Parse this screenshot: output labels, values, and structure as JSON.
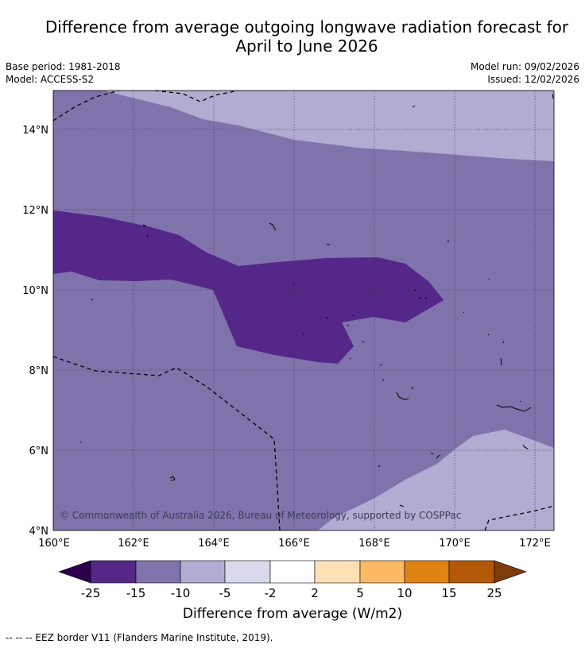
{
  "title_line1": "Difference from average outgoing longwave radiation forecast for",
  "title_line2": "April to June 2026",
  "base_period": "Base period: 1981-2018",
  "model": "Model: ACCESS-S2",
  "model_run": "Model run: 09/02/2026",
  "issued": "Issued: 12/02/2026",
  "copyright": "© Commonwealth of Australia 2026, Bureau of Meteorology, supported by COSPPac",
  "lat_labels": [
    "14°N",
    "12°N",
    "10°N",
    "8°N",
    "6°N",
    "4°N"
  ],
  "lon_labels": [
    "160°E",
    "162°E",
    "164°E",
    "166°E",
    "168°E",
    "170°E",
    "172°E"
  ],
  "colorbar": {
    "label": "Difference from average (W/m2)",
    "ticks": [
      "-25",
      "-15",
      "-10",
      "-5",
      "-2",
      "2",
      "5",
      "10",
      "15",
      "25"
    ],
    "colors": [
      "#2d004b",
      "#542788",
      "#8073ac",
      "#b2abd2",
      "#d8daeb",
      "#ffffff",
      "#fee0b6",
      "#fdb863",
      "#e08214",
      "#b35806",
      "#7f3b08"
    ]
  },
  "map_colors": {
    "minus_10_to_15": "#8073ac",
    "minus_5_to_10": "#b2abd2",
    "minus_15_to_25": "#542788"
  },
  "footer": "--  --  -- EEZ border V11 (Flanders Marine Institute, 2019)."
}
